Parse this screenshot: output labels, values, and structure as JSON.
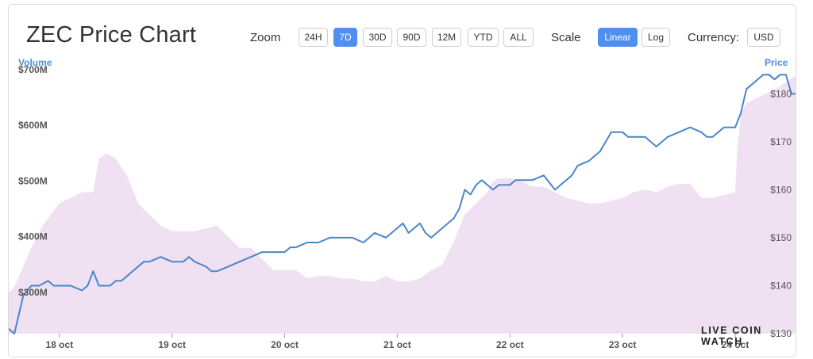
{
  "header": {
    "title": "ZEC Price Chart"
  },
  "controls": {
    "zoom_label": "Zoom",
    "zoom_options": [
      "24H",
      "7D",
      "30D",
      "90D",
      "12M",
      "YTD",
      "ALL"
    ],
    "zoom_selected": "7D",
    "scale_label": "Scale",
    "scale_options": [
      "Linear",
      "Log"
    ],
    "scale_selected": "Linear",
    "currency_label": "Currency:",
    "currency_value": "USD"
  },
  "brand": "LIVE COIN WATCH",
  "colors": {
    "price_line": "#4a86c8",
    "volume_area": "#efe1f1",
    "active_button": "#4f8ff0",
    "axis_title": "#4d8fd6"
  },
  "chart_data": {
    "type": "line",
    "title": "ZEC Price Chart",
    "xlabel": "",
    "x_ticks": [
      "18 oct",
      "19 oct",
      "20 oct",
      "21 oct",
      "22 oct",
      "23 oct",
      "24 oct"
    ],
    "x_range_days": [
      17.55,
      24.55
    ],
    "price_axis": {
      "label": "Price",
      "position": "right",
      "ticks": [
        "$130",
        "$140",
        "$150",
        "$160",
        "$170",
        "$180"
      ],
      "tick_values": [
        130,
        140,
        150,
        160,
        170,
        180
      ],
      "range": [
        130,
        187
      ]
    },
    "volume_axis": {
      "label": "Volume",
      "position": "left",
      "ticks": [
        "$300M",
        "$400M",
        "$500M",
        "$600M",
        "$700M"
      ],
      "tick_values": [
        300,
        400,
        500,
        600,
        700
      ],
      "range": [
        226,
        717
      ]
    },
    "legend": "none",
    "grid": false,
    "series": [
      {
        "name": "Price",
        "type": "line",
        "x": [
          17.55,
          17.6,
          17.68,
          17.75,
          17.82,
          17.9,
          17.95,
          18.0,
          18.05,
          18.1,
          18.2,
          18.25,
          18.3,
          18.35,
          18.4,
          18.45,
          18.5,
          18.55,
          18.6,
          18.65,
          18.7,
          18.75,
          18.8,
          18.9,
          19.0,
          19.1,
          19.15,
          19.2,
          19.3,
          19.35,
          19.4,
          19.5,
          19.6,
          19.7,
          19.8,
          19.9,
          20.0,
          20.05,
          20.1,
          20.2,
          20.3,
          20.4,
          20.5,
          20.6,
          20.7,
          20.8,
          20.9,
          21.0,
          21.05,
          21.1,
          21.2,
          21.25,
          21.3,
          21.35,
          21.4,
          21.5,
          21.55,
          21.6,
          21.65,
          21.7,
          21.75,
          21.8,
          21.85,
          21.9,
          22.0,
          22.05,
          22.1,
          22.2,
          22.3,
          22.4,
          22.5,
          22.55,
          22.6,
          22.7,
          22.8,
          22.9,
          23.0,
          23.05,
          23.1,
          23.2,
          23.25,
          23.3,
          23.35,
          23.4,
          23.5,
          23.6,
          23.7,
          23.75,
          23.8,
          23.9,
          24.0,
          24.05,
          24.1,
          24.15,
          24.2,
          24.25,
          24.3,
          24.35,
          24.4,
          24.45,
          24.5,
          24.55
        ],
        "values": [
          131,
          130,
          138,
          140,
          140,
          141,
          140,
          140,
          140,
          140,
          139,
          140,
          143,
          140,
          140,
          140,
          141,
          141,
          142,
          143,
          144,
          145,
          145,
          146,
          145,
          145,
          146,
          145,
          144,
          143,
          143,
          144,
          145,
          146,
          147,
          147,
          147,
          148,
          148,
          149,
          149,
          150,
          150,
          150,
          149,
          151,
          150,
          152,
          153,
          151,
          153,
          151,
          150,
          151,
          152,
          154,
          156,
          160,
          159,
          161,
          162,
          161,
          160,
          161,
          161,
          162,
          162,
          162,
          163,
          160,
          162,
          163,
          165,
          166,
          168,
          172,
          172,
          171,
          171,
          171,
          170,
          169,
          170,
          171,
          172,
          173,
          172,
          171,
          171,
          173,
          173,
          176,
          181,
          182,
          183,
          184,
          184,
          183,
          184,
          184,
          180,
          180
        ]
      },
      {
        "name": "Volume",
        "type": "area",
        "x": [
          17.55,
          17.6,
          17.75,
          17.85,
          18.0,
          18.1,
          18.2,
          18.3,
          18.35,
          18.42,
          18.5,
          18.6,
          18.7,
          18.8,
          18.9,
          19.0,
          19.1,
          19.2,
          19.3,
          19.4,
          19.5,
          19.6,
          19.7,
          19.8,
          19.9,
          20.0,
          20.1,
          20.2,
          20.3,
          20.4,
          20.5,
          20.6,
          20.7,
          20.8,
          20.9,
          21.0,
          21.1,
          21.2,
          21.3,
          21.4,
          21.5,
          21.6,
          21.7,
          21.8,
          21.85,
          21.9,
          22.0,
          22.1,
          22.2,
          22.3,
          22.4,
          22.5,
          22.6,
          22.7,
          22.8,
          22.9,
          23.0,
          23.1,
          23.2,
          23.3,
          23.4,
          23.5,
          23.6,
          23.7,
          23.8,
          23.9,
          24.0,
          24.02,
          24.05,
          24.1,
          24.2,
          24.3,
          24.4,
          24.5,
          24.55
        ],
        "values": [
          300,
          310,
          380,
          420,
          460,
          470,
          480,
          480,
          540,
          550,
          540,
          510,
          460,
          440,
          420,
          410,
          410,
          410,
          415,
          420,
          400,
          380,
          380,
          360,
          340,
          340,
          340,
          325,
          330,
          330,
          325,
          325,
          320,
          320,
          330,
          320,
          320,
          325,
          340,
          350,
          390,
          440,
          460,
          480,
          500,
          505,
          505,
          500,
          490,
          490,
          480,
          470,
          465,
          460,
          460,
          465,
          470,
          480,
          485,
          480,
          490,
          495,
          495,
          470,
          470,
          475,
          480,
          560,
          620,
          640,
          650,
          660,
          670,
          685,
          690
        ]
      }
    ]
  }
}
